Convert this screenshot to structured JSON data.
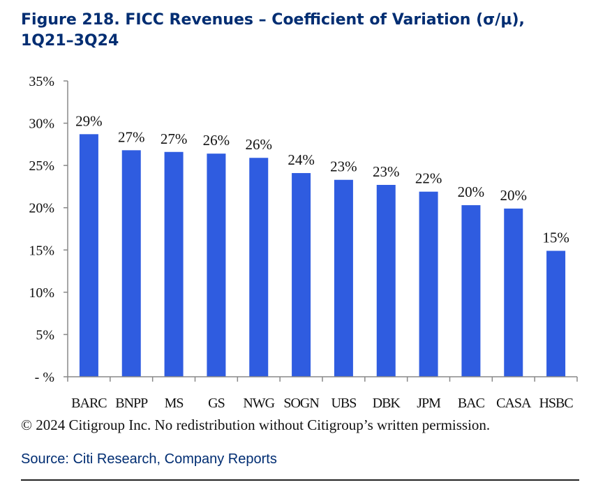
{
  "figure": {
    "title_line1": "Figure 218. FICC Revenues – Coefficient of Variation (σ/µ),",
    "title_line2": "1Q21–3Q24",
    "copyright": "© 2024 Citigroup Inc. No redistribution without Citigroup’s written permission.",
    "source": "Source: Citi Research, Company Reports"
  },
  "colors": {
    "bar": "#2f5ce0",
    "axis": "#888888",
    "title": "#002d72"
  },
  "chart_data": {
    "type": "bar",
    "title": "Figure 218. FICC Revenues – Coefficient of Variation (σ/µ), 1Q21–3Q24",
    "xlabel": "",
    "ylabel": "",
    "categories": [
      "BARC",
      "BNPP",
      "MS",
      "GS",
      "NWG",
      "SOGN",
      "UBS",
      "DBK",
      "JPM",
      "BAC",
      "CASA",
      "HSBC"
    ],
    "values": [
      28.7,
      26.8,
      26.6,
      26.4,
      25.9,
      24.1,
      23.3,
      22.7,
      21.9,
      20.3,
      19.9,
      14.9
    ],
    "data_labels": [
      "29%",
      "27%",
      "27%",
      "26%",
      "26%",
      "24%",
      "23%",
      "23%",
      "22%",
      "20%",
      "20%",
      "15%"
    ],
    "ylim": [
      0,
      35
    ],
    "yticks": [
      0,
      5,
      10,
      15,
      20,
      25,
      30,
      35
    ],
    "ytick_labels": [
      "- %",
      "5%",
      "10%",
      "15%",
      "20%",
      "25%",
      "30%",
      "35%"
    ],
    "grid": false,
    "legend": "none"
  }
}
